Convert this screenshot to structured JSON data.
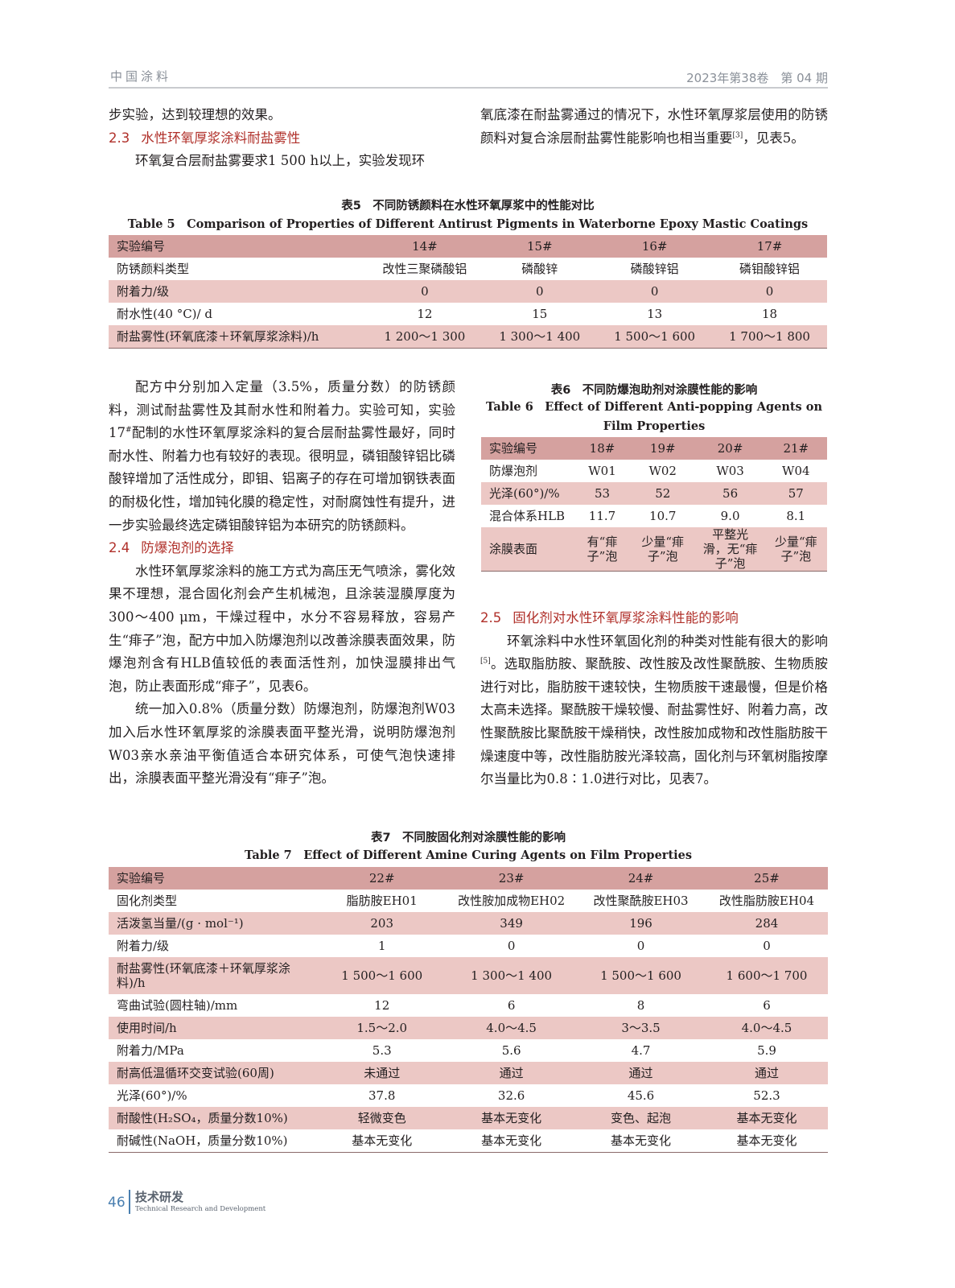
{
  "header": {
    "journal": "中国涂料",
    "issue": "2023年第38卷　第 04 期"
  },
  "top": {
    "left_line": "步实验，达到较理想的效果。",
    "h23_num": "2.3",
    "h23_title": "水性环氧厚浆涂料耐盐雾性",
    "left_para": "环氧复合层耐盐雾要求1 500 h以上，实验发现环",
    "right_para_a": "氧底漆在耐盐雾通过的情况下，水性环氧厚浆层使用的防锈颜料对复合涂层耐盐雾性能影响也相当重要",
    "right_ref": "[3]",
    "right_para_b": "，见表5。"
  },
  "table5": {
    "caption_cn": "表5　不同防锈颜料在水性环氧厚浆中的性能对比",
    "caption_en": "Table 5　Comparison of Properties of Different Antirust Pigments in Waterborne Epoxy Mastic Coatings",
    "rows": [
      [
        "实验编号",
        "14#",
        "15#",
        "16#",
        "17#"
      ],
      [
        "防锈颜料类型",
        "改性三聚磷酸铝",
        "磷酸锌",
        "磷酸锌铝",
        "磷钼酸锌铝"
      ],
      [
        "附着力/级",
        "0",
        "0",
        "0",
        "0"
      ],
      [
        "耐水性(40 °C)/ d",
        "12",
        "15",
        "13",
        "18"
      ],
      [
        "耐盐雾性(环氧底漆＋环氧厚浆涂料)/h",
        "1 200～1 300",
        "1 300～1 400",
        "1 500～1 600",
        "1 700～1 800"
      ]
    ]
  },
  "mid_left": {
    "para1_a": "配方中分别加入定量（3.5%，质量分数）的防锈颜料，测试耐盐雾性及其耐水性和附着力。实验可知，实验17",
    "para1_sup": "#",
    "para1_b": "配制的水性环氧厚浆涂料的复合层耐盐雾性最好，同时耐水性、附着力也有较好的表现。很明显，磷钼酸锌铝比磷酸锌增加了活性成分，即钼、铝离子的存在可增加钢铁表面的耐极化性，增加钝化膜的稳定性，对耐腐蚀性有提升，进一步实验最终选定磷钼酸锌铝为本研究的防锈颜料。",
    "h24_num": "2.4",
    "h24_title": "防爆泡剂的选择",
    "para2": "水性环氧厚浆涂料的施工方式为高压无气喷涂，雾化效果不理想，混合固化剂会产生机械泡，且涂装湿膜厚度为300～400 μm，干燥过程中，水分不容易释放，容易产生“痱子”泡，配方中加入防爆泡剂以改善涂膜表面效果，防爆泡剂含有HLB值较低的表面活性剂，加快湿膜排出气泡，防止表面形成“痱子”，见表6。",
    "para3": "统一加入0.8%（质量分数）防爆泡剂，防爆泡剂W03加入后水性环氧厚浆的涂膜表面平整光滑，说明防爆泡剂W03亲水亲油平衡值适合本研究体系，可使气泡快速排出，涂膜表面平整光滑没有“痱子”泡。"
  },
  "table6": {
    "caption_cn": "表6　不同防爆泡助剂对涂膜性能的影响",
    "caption_en": "Table 6　Effect of Different Anti-popping Agents on Film Properties",
    "rows": [
      [
        "实验编号",
        "18#",
        "19#",
        "20#",
        "21#"
      ],
      [
        "防爆泡剂",
        "W01",
        "W02",
        "W03",
        "W04"
      ],
      [
        "光泽(60°)/%",
        "53",
        "52",
        "56",
        "57"
      ],
      [
        "混合体系HLB",
        "11.7",
        "10.7",
        "9.0",
        "8.1"
      ],
      [
        "涂膜表面",
        "有“痱子”泡",
        "少量“痱子”泡",
        "平整光滑，无“痱子”泡",
        "少量“痱子”泡"
      ]
    ]
  },
  "mid_right": {
    "h25_num": "2.5",
    "h25_title": "固化剂对水性环氧厚浆涂料性能的影响",
    "para_a": "环氧涂料中水性环氧固化剂的种类对性能有很大的影响",
    "para_ref": "[5]",
    "para_b": "。选取脂肪胺、聚酰胺、改性胺及改性聚酰胺、生物质胺进行对比，脂肪胺干速较快，生物质胺干速最慢，但是价格太高未选择。聚酰胺干燥较慢、耐盐雾性好、附着力高，改性聚酰胺比聚酰胺干燥稍快，改性胺加成物和改性脂肪胺干燥速度中等，改性脂肪胺光泽较高，固化剂与环氧树脂按摩尔当量比为0.8∶1.0进行对比，见表7。"
  },
  "table7": {
    "caption_cn": "表7　不同胺固化剂对涂膜性能的影响",
    "caption_en": "Table 7　Effect of Different Amine Curing Agents on Film Properties",
    "rows": [
      [
        "实验编号",
        "22#",
        "23#",
        "24#",
        "25#"
      ],
      [
        "固化剂类型",
        "脂肪胺EH01",
        "改性胺加成物EH02",
        "改性聚酰胺EH03",
        "改性脂肪胺EH04"
      ],
      [
        "活泼氢当量/(g · mol⁻¹)",
        "203",
        "349",
        "196",
        "284"
      ],
      [
        "附着力/级",
        "1",
        "0",
        "0",
        "0"
      ],
      [
        "耐盐雾性(环氧底漆＋环氧厚浆涂料)/h",
        "1 500～1 600",
        "1 300～1 400",
        "1 500～1 600",
        "1 600～1 700"
      ],
      [
        "弯曲试验(圆柱轴)/mm",
        "12",
        "6",
        "8",
        "6"
      ],
      [
        "使用时间/h",
        "1.5～2.0",
        "4.0～4.5",
        "3～3.5",
        "4.0～4.5"
      ],
      [
        "附着力/MPa",
        "5.3",
        "5.6",
        "4.7",
        "5.9"
      ],
      [
        "耐高低温循环交变试验(60周)",
        "未通过",
        "通过",
        "通过",
        "通过"
      ],
      [
        "光泽(60°)/%",
        "37.8",
        "32.6",
        "45.6",
        "52.3"
      ],
      [
        "耐酸性(H₂SO₄，质量分数10%)",
        "轻微变色",
        "基本无变化",
        "变色、起泡",
        "基本无变化"
      ],
      [
        "耐碱性(NaOH，质量分数10%)",
        "基本无变化",
        "基本无变化",
        "基本无变化",
        "基本无变化"
      ]
    ]
  },
  "footer": {
    "page": "46",
    "section_cn": "技术研发",
    "section_en": "Technical Research and Development"
  },
  "colors": {
    "heading": "#b0302a",
    "table_header": "#d5a19f",
    "table_stripe": "#ecc8c5",
    "footer_accent": "#4a7fb0"
  }
}
